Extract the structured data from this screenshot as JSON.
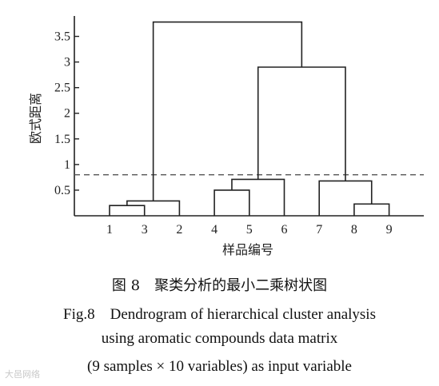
{
  "chart_data": {
    "type": "dendrogram",
    "ylabel": "欧式距离",
    "xlabel": "样品编号",
    "ylim": [
      0,
      3.8
    ],
    "y_ticks": [
      "0.5",
      "1",
      "1.5",
      "2",
      "2.5",
      "3",
      "3.5"
    ],
    "y_tick_values": [
      0.5,
      1,
      1.5,
      2,
      2.5,
      3,
      3.5
    ],
    "leaf_order": [
      "1",
      "3",
      "2",
      "4",
      "5",
      "6",
      "7",
      "8",
      "9"
    ],
    "cut_line": 0.8,
    "merges": [
      {
        "a": "1",
        "b": "3",
        "height": 0.2
      },
      {
        "a": "1+3",
        "b": "2",
        "height": 0.29
      },
      {
        "a": "4",
        "b": "5",
        "height": 0.5
      },
      {
        "a": "4+5",
        "b": "6",
        "height": 0.71
      },
      {
        "a": "8",
        "b": "9",
        "height": 0.23
      },
      {
        "a": "7",
        "b": "8+9",
        "height": 0.68
      },
      {
        "a": "4+5+6",
        "b": "7+8+9",
        "height": 2.9
      },
      {
        "a": "1+3+2",
        "b": "4-9",
        "height": 3.78
      }
    ]
  },
  "captions": {
    "cn": "图 8　聚类分析的最小二乘树状图",
    "en1": "Fig.8　Dendrogram of hierarchical cluster analysis",
    "en2": "using aromatic compounds data matrix",
    "en3": "(9 samples × 10 variables) as input variable"
  },
  "watermark": "大邑网络"
}
